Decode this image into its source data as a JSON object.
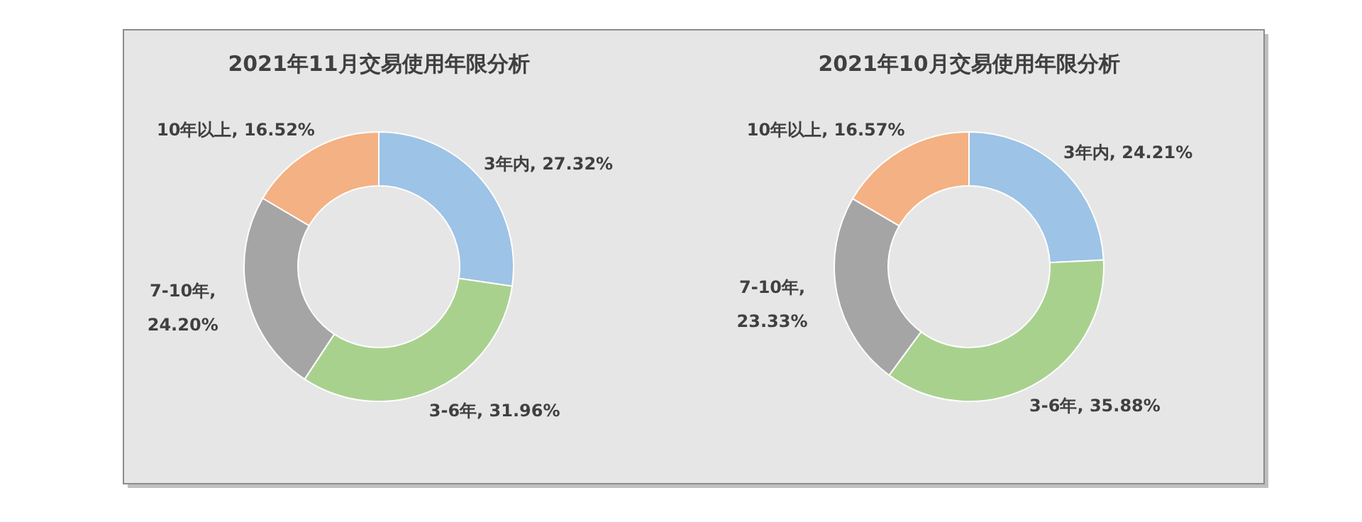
{
  "chart_data": [
    {
      "type": "donut",
      "title": "2021年11月交易使用年限分析",
      "categories": [
        "3年内",
        "3-6年",
        "7-10年",
        "10年以上"
      ],
      "values": [
        27.32,
        31.96,
        24.2,
        16.52
      ],
      "value_labels": [
        ", 27.32%",
        ", 31.96%",
        ", 24.20%",
        ", 16.52%"
      ],
      "colors": [
        "#9dc3e6",
        "#a9d18e",
        "#a5a5a5",
        "#f4b183"
      ]
    },
    {
      "type": "donut",
      "title": "2021年10月交易使用年限分析",
      "categories": [
        "3年内",
        "3-6年",
        "7-10年",
        "10年以上"
      ],
      "values": [
        24.21,
        35.88,
        23.33,
        16.57
      ],
      "value_labels": [
        ", 24.21%",
        ", 35.88%",
        ", 23.33%",
        ", 16.57%"
      ],
      "colors": [
        "#9dc3e6",
        "#a9d18e",
        "#a5a5a5",
        "#f4b183"
      ]
    }
  ]
}
